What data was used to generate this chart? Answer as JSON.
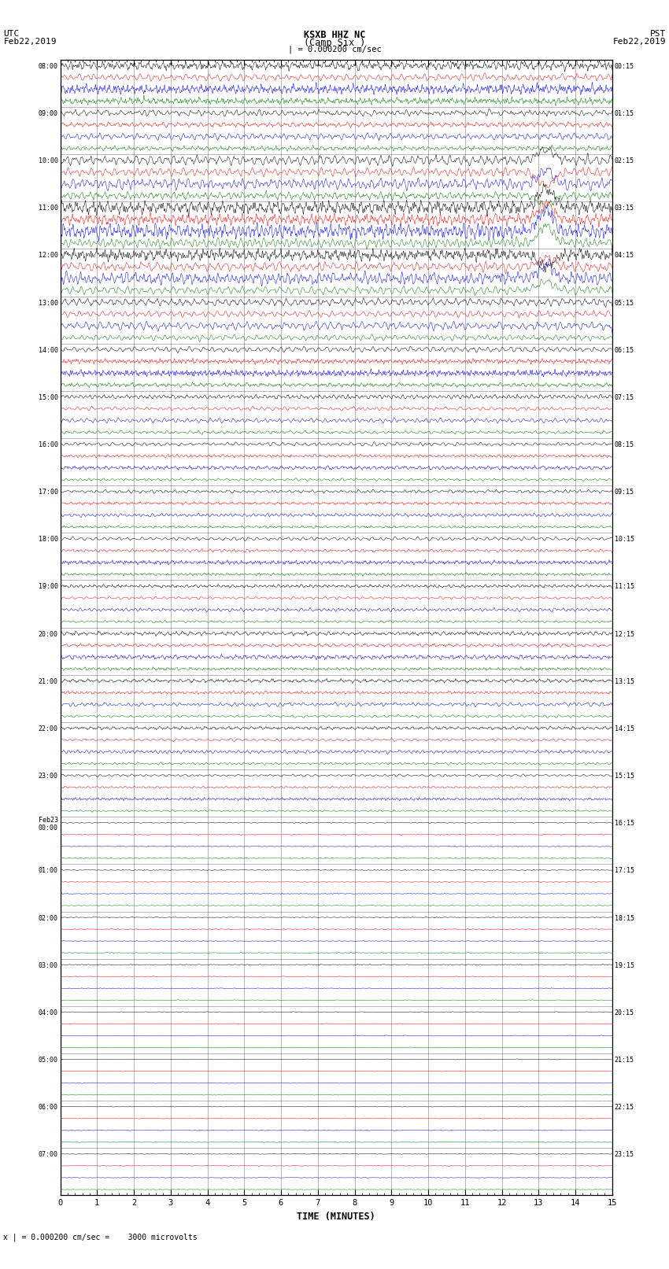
{
  "title_line1": "KSXB HHZ NC",
  "title_line2": "(Camp Six )",
  "scale_label": "| = 0.000200 cm/sec",
  "bottom_label": "x | = 0.000200 cm/sec =    3000 microvolts",
  "xlabel": "TIME (MINUTES)",
  "left_header_line1": "UTC",
  "left_header_line2": "Feb22,2019",
  "right_header_line1": "PST",
  "right_header_line2": "Feb22,2019",
  "left_times_utc": [
    "08:00",
    "",
    "",
    "",
    "09:00",
    "",
    "",
    "",
    "10:00",
    "",
    "",
    "",
    "11:00",
    "",
    "",
    "",
    "12:00",
    "",
    "",
    "",
    "13:00",
    "",
    "",
    "",
    "14:00",
    "",
    "",
    "",
    "15:00",
    "",
    "",
    "",
    "16:00",
    "",
    "",
    "",
    "17:00",
    "",
    "",
    "",
    "18:00",
    "",
    "",
    "",
    "19:00",
    "",
    "",
    "",
    "20:00",
    "",
    "",
    "",
    "21:00",
    "",
    "",
    "",
    "22:00",
    "",
    "",
    "",
    "23:00",
    "",
    "",
    "",
    "Feb23\n00:00",
    "",
    "",
    "",
    "01:00",
    "",
    "",
    "",
    "02:00",
    "",
    "",
    "",
    "03:00",
    "",
    "",
    "",
    "04:00",
    "",
    "",
    "",
    "05:00",
    "",
    "",
    "",
    "06:00",
    "",
    "",
    "",
    "07:00",
    "",
    ""
  ],
  "right_times_pst": [
    "00:15",
    "",
    "",
    "",
    "01:15",
    "",
    "",
    "",
    "02:15",
    "",
    "",
    "",
    "03:15",
    "",
    "",
    "",
    "04:15",
    "",
    "",
    "",
    "05:15",
    "",
    "",
    "",
    "06:15",
    "",
    "",
    "",
    "07:15",
    "",
    "",
    "",
    "08:15",
    "",
    "",
    "",
    "09:15",
    "",
    "",
    "",
    "10:15",
    "",
    "",
    "",
    "11:15",
    "",
    "",
    "",
    "12:15",
    "",
    "",
    "",
    "13:15",
    "",
    "",
    "",
    "14:15",
    "",
    "",
    "",
    "15:15",
    "",
    "",
    "",
    "16:15",
    "",
    "",
    "",
    "17:15",
    "",
    "",
    "",
    "18:15",
    "",
    "",
    "",
    "19:15",
    "",
    "",
    "",
    "20:15",
    "",
    "",
    "",
    "21:15",
    "",
    "",
    "",
    "22:15",
    "",
    "",
    "",
    "23:15",
    "",
    ""
  ],
  "colors_cycle": [
    "black",
    "red",
    "blue",
    "green"
  ],
  "bg_color": "white",
  "n_hours_active": 16,
  "n_hours_quiet": 8,
  "amp_per_hour": [
    0.42,
    0.3,
    0.5,
    0.65,
    0.55,
    0.38,
    0.28,
    0.22,
    0.18,
    0.16,
    0.18,
    0.16,
    0.2,
    0.18,
    0.16,
    0.12
  ],
  "quiet_amp": 0.04
}
